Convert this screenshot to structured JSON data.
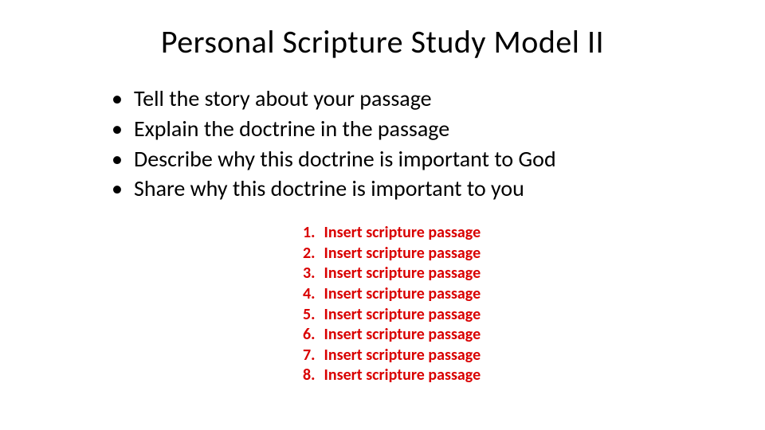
{
  "title": "Personal Scripture Study Model II",
  "bullets": [
    "Tell the story about your passage",
    "Explain the doctrine in the passage",
    "Describe why this doctrine is important to God",
    "Share why this doctrine is important to you"
  ],
  "numbered": [
    "Insert scripture passage",
    "Insert scripture passage",
    "Insert scripture passage",
    "Insert scripture passage",
    "Insert scripture passage",
    "Insert scripture passage",
    "Insert scripture passage",
    "Insert scripture passage"
  ],
  "styles": {
    "background_color": "#ffffff",
    "title_fontsize": 40,
    "title_color": "#000000",
    "bullet_fontsize": 28,
    "bullet_color": "#000000",
    "numbered_fontsize": 20,
    "numbered_color": "#d90000",
    "numbered_fontweight": 700
  }
}
